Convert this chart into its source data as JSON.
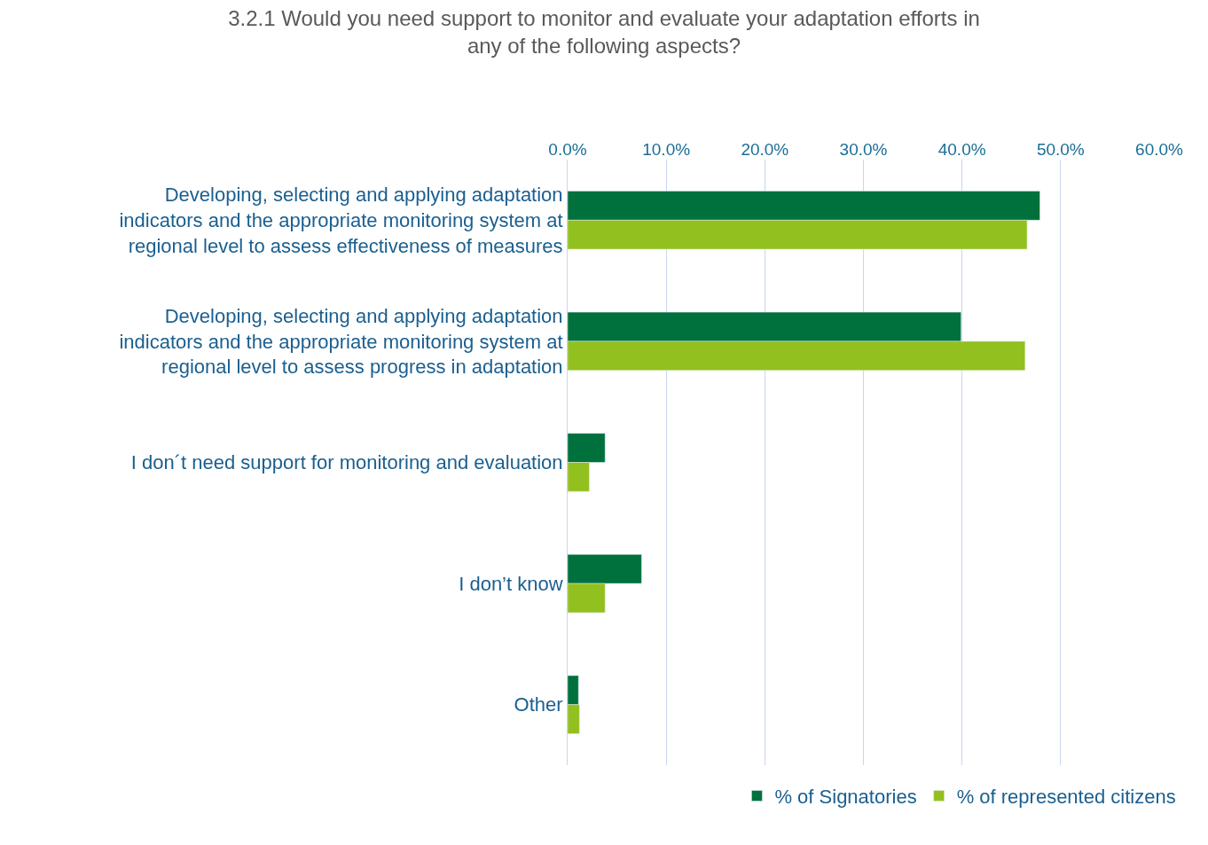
{
  "chart_data": {
    "type": "bar",
    "orientation": "horizontal",
    "title": "3.2.1 Would you need support to monitor and evaluate your adaptation efforts in any of the following aspects?",
    "categories": [
      "Developing, selecting and applying adaptation indicators and the appropriate monitoring system at regional level to assess effectiveness of measures",
      "Developing, selecting and applying adaptation indicators and the appropriate monitoring system at regional level to assess progress in adaptation",
      "I don´t need support for monitoring and evaluation",
      "I don’t know",
      "Other"
    ],
    "series": [
      {
        "name": "% of Signatories",
        "color": "#00703c",
        "values": [
          47.9,
          39.9,
          3.8,
          7.5,
          1.1
        ]
      },
      {
        "name": "% of represented citizens",
        "color": "#92c01f",
        "values": [
          46.6,
          46.4,
          2.2,
          3.8,
          1.2
        ]
      }
    ],
    "xlim": [
      0,
      60
    ],
    "xticks": [
      {
        "value": 0,
        "label": "0.0%"
      },
      {
        "value": 10,
        "label": "10.0%"
      },
      {
        "value": 20,
        "label": "20.0%"
      },
      {
        "value": 30,
        "label": "30.0%"
      },
      {
        "value": 40,
        "label": "40.0%"
      },
      {
        "value": 50,
        "label": "50.0%"
      },
      {
        "value": 60,
        "label": "60.0%"
      }
    ],
    "grid": "x",
    "legend": "bottom"
  }
}
